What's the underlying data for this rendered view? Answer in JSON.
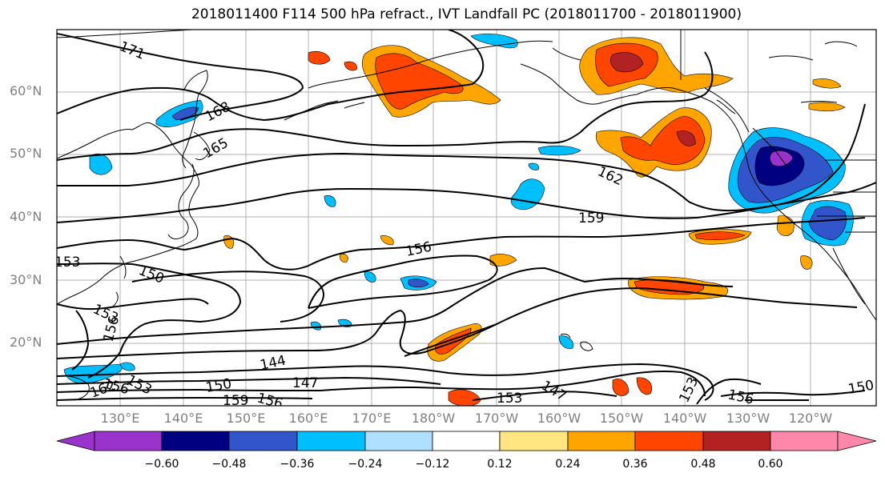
{
  "title": "2018011400 F114 500 hPa refract., IVT Landfall PC (2018011700 - 2018011900)",
  "lat_labels": [
    "60°N",
    "50°N",
    "40°N",
    "30°N",
    "20°N"
  ],
  "lon_labels": [
    "130°E",
    "140°E",
    "150°E",
    "160°E",
    "170°E",
    "180°W",
    "170°W",
    "160°W",
    "150°W",
    "140°W",
    "130°W",
    "120°W"
  ],
  "contour_labels": [
    "171",
    "168",
    "165",
    "162",
    "159",
    "156",
    "150",
    "153",
    "156",
    "144",
    "147",
    "150",
    "159",
    "156",
    "153",
    "147",
    "153",
    "156",
    "150",
    "162",
    "153",
    "156"
  ],
  "colorbar": {
    "ticks": [
      "−0.60",
      "−0.48",
      "−0.36",
      "−0.24",
      "−0.12",
      "0.12",
      "0.24",
      "0.36",
      "0.48",
      "0.60"
    ],
    "colors": [
      "#9933cc",
      "#000080",
      "#3355cc",
      "#00bfff",
      "#b0e0ff",
      "#ffffff",
      "#ffe680",
      "#ffa500",
      "#ff4500",
      "#b22222",
      "#ff88aa"
    ]
  }
}
